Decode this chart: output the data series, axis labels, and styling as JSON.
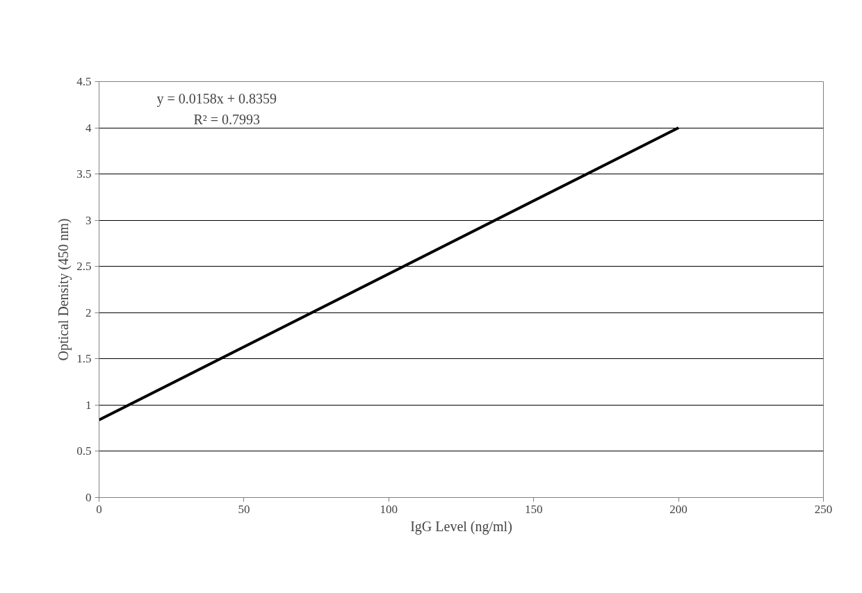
{
  "chart_data": {
    "type": "line",
    "xlabel": "IgG Level (ng/ml)",
    "ylabel": "Optical Density (450 nm)",
    "x": [
      0,
      200
    ],
    "series": [
      {
        "color": "#000000",
        "values": [
          0.84,
          4.0
        ]
      }
    ],
    "xlim": [
      0,
      250
    ],
    "xticks": [
      0,
      50,
      100,
      150,
      200,
      250
    ],
    "ylim": [
      0,
      4.5
    ],
    "yticks": [
      0,
      0.5,
      1,
      1.5,
      2,
      2.5,
      3,
      3.5,
      4,
      4.5
    ],
    "grid": "y",
    "marker": "none",
    "line_style": "solid",
    "annotations": [
      "y = 0.0158x + 0.8359",
      "R² = 0.7993"
    ]
  }
}
